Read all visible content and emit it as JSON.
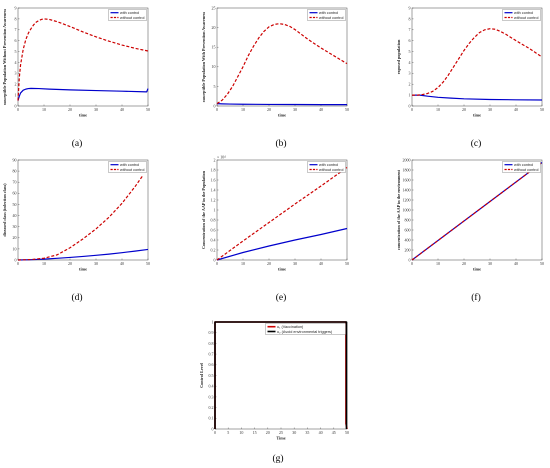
{
  "chart_data": [
    {
      "id": "a",
      "caption": "(a)",
      "type": "line",
      "xlabel": "time",
      "ylabel": "susceptible Population Without Prevention Awareness",
      "xlim": [
        0,
        50
      ],
      "ylim": [
        0,
        9
      ],
      "xticks": [
        0,
        10,
        20,
        30,
        40,
        50
      ],
      "yticks": [
        0,
        1,
        2,
        3,
        4,
        5,
        6,
        7,
        8,
        9
      ],
      "yexp": "",
      "legend": [
        "with control",
        "without control"
      ],
      "legend_position": "top-right",
      "series": [
        {
          "name": "with control",
          "color": "#0000cc",
          "dash": false,
          "x": [
            0,
            0.5,
            1,
            2,
            3,
            4,
            5,
            8,
            12,
            20,
            30,
            40,
            49.5,
            50
          ],
          "y": [
            0.5,
            0.9,
            1.2,
            1.45,
            1.55,
            1.6,
            1.62,
            1.6,
            1.55,
            1.48,
            1.42,
            1.36,
            1.3,
            1.6
          ]
        },
        {
          "name": "without control",
          "color": "#cc0000",
          "dash": true,
          "x": [
            0,
            0.5,
            1,
            2,
            3,
            4,
            5,
            6,
            7,
            8,
            9,
            10,
            12,
            15,
            20,
            25,
            30,
            35,
            40,
            45,
            50
          ],
          "y": [
            0.5,
            2.6,
            3.8,
            5.2,
            6.1,
            6.7,
            7.1,
            7.45,
            7.7,
            7.85,
            7.95,
            8.0,
            7.95,
            7.75,
            7.3,
            6.8,
            6.35,
            5.95,
            5.6,
            5.3,
            5.05
          ]
        }
      ]
    },
    {
      "id": "b",
      "caption": "(b)",
      "type": "line",
      "xlabel": "time",
      "ylabel": "susceptible Population With Prevention Awareness",
      "xlim": [
        0,
        50
      ],
      "ylim": [
        0,
        25
      ],
      "xticks": [
        0,
        10,
        20,
        30,
        40,
        50
      ],
      "yticks": [
        0,
        5,
        10,
        15,
        20,
        25
      ],
      "yexp": "",
      "legend": [
        "with control",
        "without control"
      ],
      "legend_position": "top-right",
      "series": [
        {
          "name": "with control",
          "color": "#0000cc",
          "dash": false,
          "x": [
            0,
            2,
            5,
            10,
            20,
            30,
            40,
            50
          ],
          "y": [
            0.6,
            0.55,
            0.5,
            0.45,
            0.4,
            0.38,
            0.36,
            0.35
          ]
        },
        {
          "name": "without control",
          "color": "#cc0000",
          "dash": true,
          "x": [
            0,
            2,
            4,
            6,
            8,
            10,
            12,
            14,
            16,
            18,
            20,
            22,
            24,
            26,
            28,
            30,
            32,
            35,
            40,
            45,
            50
          ],
          "y": [
            0.6,
            1.5,
            3.0,
            5.0,
            7.5,
            10.0,
            12.8,
            15.2,
            17.3,
            19.0,
            20.2,
            20.8,
            21.0,
            20.8,
            20.3,
            19.5,
            18.5,
            17.0,
            14.8,
            12.8,
            10.8
          ]
        }
      ]
    },
    {
      "id": "c",
      "caption": "(c)",
      "type": "line",
      "xlabel": "time",
      "ylabel": "exposed population",
      "xlim": [
        0,
        50
      ],
      "ylim": [
        0,
        9
      ],
      "xticks": [
        0,
        10,
        20,
        30,
        40,
        50
      ],
      "yticks": [
        0,
        1,
        2,
        3,
        4,
        5,
        6,
        7,
        8,
        9
      ],
      "yexp": "",
      "legend": [
        "with control",
        "without control"
      ],
      "legend_position": "top-right",
      "series": [
        {
          "name": "with control",
          "color": "#0000cc",
          "dash": false,
          "x": [
            0,
            3,
            6,
            10,
            15,
            20,
            30,
            40,
            50
          ],
          "y": [
            1.0,
            1.0,
            0.9,
            0.8,
            0.72,
            0.66,
            0.6,
            0.57,
            0.55
          ]
        },
        {
          "name": "without control",
          "color": "#cc0000",
          "dash": true,
          "x": [
            0,
            2,
            4,
            6,
            8,
            10,
            12,
            14,
            16,
            18,
            20,
            22,
            24,
            26,
            28,
            30,
            32,
            34,
            36,
            40,
            45,
            50
          ],
          "y": [
            1.0,
            1.0,
            1.05,
            1.15,
            1.35,
            1.7,
            2.2,
            2.85,
            3.6,
            4.35,
            5.1,
            5.75,
            6.3,
            6.75,
            7.0,
            7.1,
            7.05,
            6.85,
            6.6,
            6.0,
            5.3,
            4.5
          ]
        }
      ]
    },
    {
      "id": "d",
      "caption": "(d)",
      "type": "line",
      "xlabel": "time",
      "ylabel": "diseased class (infection class)",
      "xlim": [
        0,
        50
      ],
      "ylim": [
        0,
        90
      ],
      "xticks": [
        0,
        10,
        20,
        30,
        40,
        50
      ],
      "yticks": [
        0,
        10,
        20,
        30,
        40,
        50,
        60,
        70,
        80,
        90
      ],
      "yexp": "",
      "legend": [
        "with control",
        "without control"
      ],
      "legend_position": "top-right",
      "series": [
        {
          "name": "with control",
          "color": "#0000cc",
          "dash": false,
          "x": [
            0,
            5,
            10,
            15,
            20,
            25,
            30,
            35,
            40,
            45,
            50
          ],
          "y": [
            0,
            0.3,
            0.8,
            1.5,
            2.3,
            3.2,
            4.2,
            5.3,
            6.6,
            8.0,
            9.5
          ]
        },
        {
          "name": "without control",
          "color": "#cc0000",
          "dash": true,
          "x": [
            0,
            5,
            10,
            15,
            20,
            25,
            30,
            35,
            40,
            45,
            48
          ],
          "y": [
            0,
            0.4,
            1.6,
            4.6,
            11.0,
            19.0,
            28.0,
            38.5,
            51.0,
            66.0,
            76.0
          ]
        }
      ]
    },
    {
      "id": "e",
      "caption": "(e)",
      "type": "line",
      "xlabel": "time",
      "ylabel": "Concentration of the AAP in the Population",
      "xlim": [
        0,
        50
      ],
      "ylim": [
        0,
        2.0
      ],
      "xticks": [
        0,
        10,
        20,
        30,
        40,
        50
      ],
      "yticks": [
        0,
        0.2,
        0.4,
        0.6,
        0.8,
        1.0,
        1.2,
        1.4,
        1.6,
        1.8,
        2.0
      ],
      "yexp": "× 10⁴",
      "legend": [
        "with control",
        "without control"
      ],
      "legend_position": "top-right",
      "series": [
        {
          "name": "with control",
          "color": "#0000cc",
          "dash": false,
          "x": [
            0,
            10,
            20,
            30,
            40,
            50
          ],
          "y": [
            0,
            0.15,
            0.28,
            0.4,
            0.51,
            0.63
          ]
        },
        {
          "name": "without control",
          "color": "#cc0000",
          "dash": true,
          "x": [
            0,
            10,
            20,
            30,
            40,
            50
          ],
          "y": [
            0,
            0.38,
            0.75,
            1.12,
            1.48,
            1.85
          ]
        }
      ]
    },
    {
      "id": "f",
      "caption": "(f)",
      "type": "line",
      "xlabel": "time",
      "ylabel": "concentration of the AAP in the environment",
      "xlim": [
        0,
        50
      ],
      "ylim": [
        0,
        2000
      ],
      "xticks": [
        0,
        10,
        20,
        30,
        40,
        50
      ],
      "yticks": [
        0,
        200,
        400,
        600,
        800,
        1000,
        1200,
        1400,
        1600,
        1800,
        2000
      ],
      "yexp": "",
      "legend": [
        "with control",
        "without control"
      ],
      "legend_position": "top-right",
      "series": [
        {
          "name": "with control",
          "color": "#0000cc",
          "dash": false,
          "x": [
            0,
            50
          ],
          "y": [
            0,
            1950
          ]
        },
        {
          "name": "without control",
          "color": "#cc0000",
          "dash": true,
          "x": [
            0,
            50
          ],
          "y": [
            0,
            1950
          ]
        }
      ]
    },
    {
      "id": "g",
      "caption": "(g)",
      "type": "line",
      "xlabel": "Time",
      "ylabel": "Control Level",
      "xlim": [
        0,
        50
      ],
      "ylim": [
        0,
        1
      ],
      "xticks": [
        0,
        5,
        10,
        15,
        20,
        25,
        30,
        35,
        40,
        45,
        50
      ],
      "yticks": [
        0,
        0.1,
        0.2,
        0.3,
        0.4,
        0.5,
        0.6,
        0.7,
        0.8,
        0.9,
        1
      ],
      "yexp": "",
      "legend": [
        "u₁ (Vaccination)",
        "u₂ (Avoid environmental triggers)"
      ],
      "legend_position": "top-right",
      "series": [
        {
          "name": "u₁ (Vaccination)",
          "color": "#cc0000",
          "dash": false,
          "x": [
            0,
            0,
            49.6,
            49.6,
            50
          ],
          "y": [
            0,
            1,
            1,
            0.05,
            0
          ]
        },
        {
          "name": "u₂ (Avoid environmental triggers)",
          "color": "#000000",
          "dash": false,
          "x": [
            0,
            0,
            49.8,
            49.8
          ],
          "y": [
            0,
            1,
            1,
            0
          ]
        }
      ]
    }
  ]
}
